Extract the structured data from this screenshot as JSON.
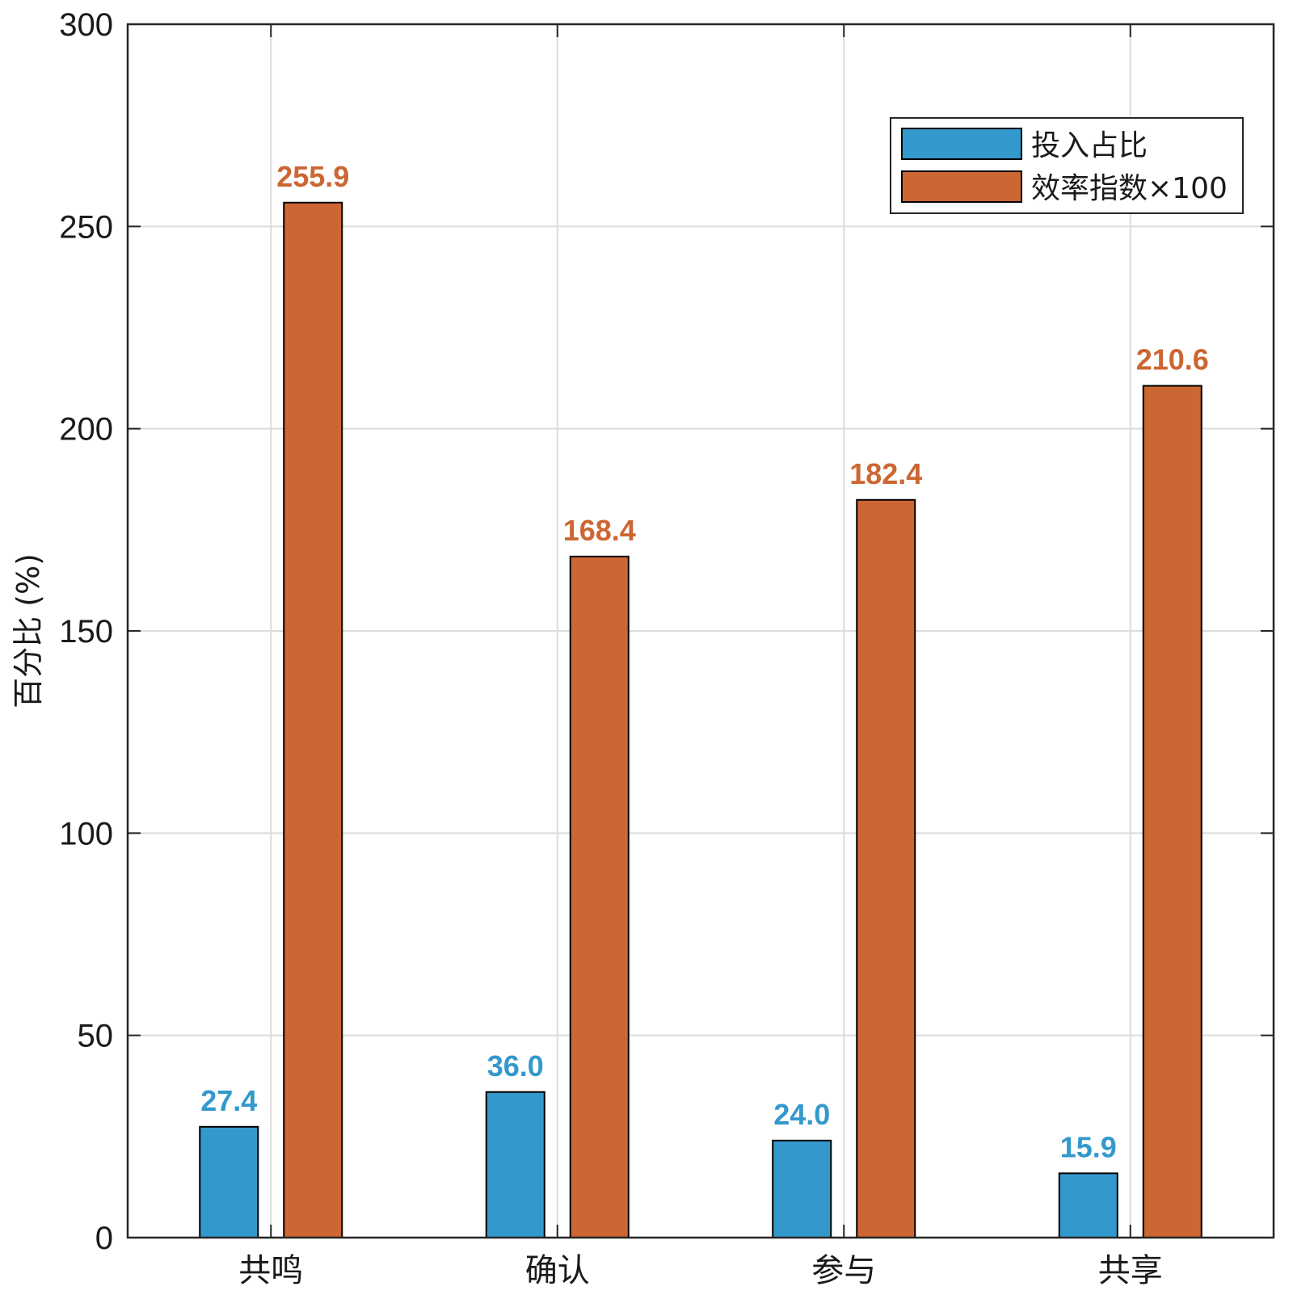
{
  "chart_data": {
    "type": "bar",
    "title": "",
    "xlabel": "",
    "ylabel": "百分比 (%)",
    "ylim": [
      0,
      300
    ],
    "yticks": [
      0,
      50,
      100,
      150,
      200,
      250,
      300
    ],
    "grid": true,
    "legend_position": "top-right",
    "categories": [
      "共鸣",
      "确认",
      "参与",
      "共享"
    ],
    "series": [
      {
        "name": "投入占比",
        "color": "#3399CC",
        "label_color": "#3399CC",
        "values": [
          27.4,
          36.0,
          24.0,
          15.9
        ],
        "labels": [
          "27.4",
          "36.0",
          "24.0",
          "15.9"
        ]
      },
      {
        "name": "效率指数×100",
        "color": "#CC6633",
        "label_color": "#CC6633",
        "values": [
          255.9,
          168.4,
          182.4,
          210.6
        ],
        "labels": [
          "255.9",
          "168.4",
          "182.4",
          "210.6"
        ]
      }
    ]
  }
}
